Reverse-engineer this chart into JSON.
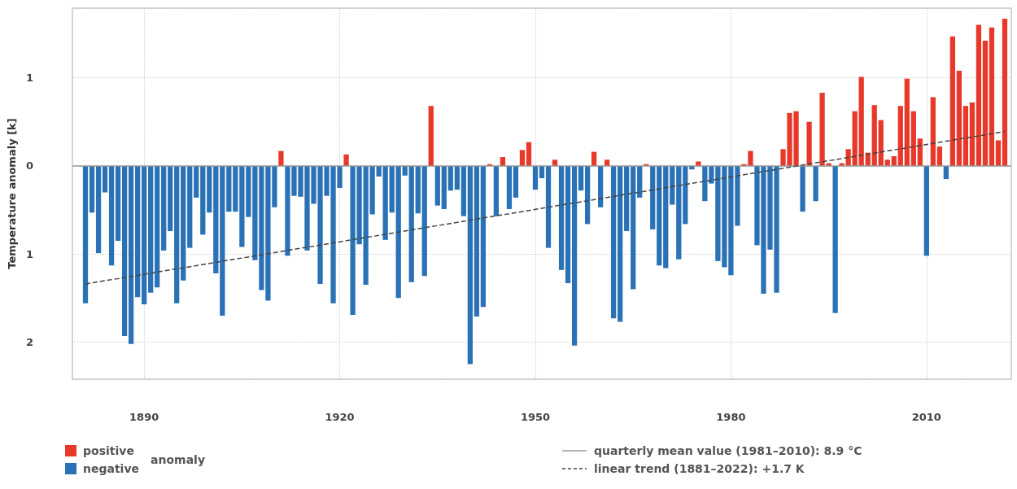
{
  "chart_data": {
    "type": "bar",
    "ylabel": "Temperature anomaly [k]",
    "legend_title": "anomaly",
    "x": [
      1881,
      1882,
      1883,
      1884,
      1885,
      1886,
      1887,
      1888,
      1889,
      1890,
      1891,
      1892,
      1893,
      1894,
      1895,
      1896,
      1897,
      1898,
      1899,
      1900,
      1901,
      1902,
      1903,
      1904,
      1905,
      1906,
      1907,
      1908,
      1909,
      1910,
      1911,
      1912,
      1913,
      1914,
      1915,
      1916,
      1917,
      1918,
      1919,
      1920,
      1921,
      1922,
      1923,
      1924,
      1925,
      1926,
      1927,
      1928,
      1929,
      1930,
      1931,
      1932,
      1933,
      1934,
      1935,
      1936,
      1937,
      1938,
      1939,
      1940,
      1941,
      1942,
      1943,
      1944,
      1945,
      1946,
      1947,
      1948,
      1949,
      1950,
      1951,
      1952,
      1953,
      1954,
      1955,
      1956,
      1957,
      1958,
      1959,
      1960,
      1961,
      1962,
      1963,
      1964,
      1965,
      1966,
      1967,
      1968,
      1969,
      1970,
      1971,
      1972,
      1973,
      1974,
      1975,
      1976,
      1977,
      1978,
      1979,
      1980,
      1981,
      1982,
      1983,
      1984,
      1985,
      1986,
      1987,
      1988,
      1989,
      1990,
      1991,
      1992,
      1993,
      1994,
      1995,
      1996,
      1997,
      1998,
      1999,
      2000,
      2001,
      2002,
      2003,
      2004,
      2005,
      2006,
      2007,
      2008,
      2009,
      2010,
      2011,
      2012,
      2013,
      2014,
      2015,
      2016,
      2017,
      2018,
      2019,
      2020,
      2021,
      2022
    ],
    "series": [
      {
        "name": "positive",
        "color": "#e8382a",
        "values": [
          null,
          null,
          null,
          null,
          null,
          null,
          null,
          null,
          null,
          null,
          null,
          null,
          null,
          null,
          null,
          null,
          null,
          null,
          null,
          null,
          null,
          null,
          null,
          null,
          null,
          null,
          null,
          null,
          null,
          null,
          0.17,
          null,
          null,
          null,
          null,
          null,
          null,
          null,
          null,
          null,
          0.13,
          null,
          null,
          null,
          null,
          null,
          null,
          null,
          null,
          null,
          null,
          null,
          null,
          0.68,
          null,
          null,
          null,
          null,
          null,
          null,
          null,
          null,
          0.02,
          null,
          0.1,
          null,
          null,
          0.18,
          0.27,
          null,
          null,
          null,
          0.07,
          null,
          null,
          null,
          null,
          null,
          0.16,
          null,
          0.07,
          null,
          null,
          null,
          null,
          null,
          0.02,
          null,
          null,
          null,
          null,
          null,
          null,
          null,
          0.05,
          null,
          null,
          null,
          null,
          null,
          null,
          0.02,
          0.17,
          null,
          null,
          null,
          null,
          0.19,
          0.6,
          0.62,
          null,
          0.5,
          null,
          0.83,
          0.03,
          null,
          0.03,
          0.19,
          0.62,
          1.01,
          0.15,
          0.69,
          0.52,
          0.07,
          0.11,
          0.68,
          0.99,
          0.62,
          0.31,
          null,
          0.78,
          0.22,
          null,
          1.47,
          1.08,
          0.68,
          0.72,
          1.6,
          1.42,
          1.57,
          0.29,
          1.67
        ]
      },
      {
        "name": "negative",
        "color": "#2a72b5",
        "values": [
          -1.56,
          -0.53,
          -0.99,
          -0.3,
          -1.13,
          -0.85,
          -1.93,
          -2.02,
          -1.49,
          -1.57,
          -1.44,
          -1.38,
          -0.96,
          -0.74,
          -1.56,
          -1.3,
          -0.93,
          -0.36,
          -0.78,
          -0.53,
          -1.22,
          -1.7,
          -0.52,
          -0.52,
          -0.92,
          -0.58,
          -1.07,
          -1.41,
          -1.53,
          -0.47,
          null,
          -1.02,
          -0.34,
          -0.35,
          -0.96,
          -0.43,
          -1.34,
          -0.34,
          -1.56,
          -0.25,
          null,
          -1.69,
          -0.89,
          -1.35,
          -0.55,
          -0.12,
          -0.84,
          -0.53,
          -1.5,
          -0.11,
          -1.32,
          -0.54,
          -1.25,
          null,
          -0.45,
          -0.49,
          -0.28,
          -0.27,
          -0.57,
          -2.25,
          -1.71,
          -1.6,
          null,
          -0.57,
          null,
          -0.49,
          -0.36,
          null,
          null,
          -0.27,
          -0.14,
          -0.93,
          null,
          -1.18,
          -1.33,
          -2.04,
          -0.28,
          -0.66,
          null,
          -0.47,
          null,
          -1.73,
          -1.77,
          -0.74,
          -1.4,
          -0.36,
          null,
          -0.72,
          -1.13,
          -1.16,
          -0.44,
          -1.06,
          -0.66,
          -0.04,
          null,
          -0.4,
          -0.2,
          -1.08,
          -1.15,
          -1.24,
          -0.68,
          null,
          null,
          -0.9,
          -1.45,
          -0.95,
          -1.44,
          null,
          null,
          null,
          -0.52,
          null,
          -0.4,
          null,
          null,
          -1.67,
          null,
          null,
          null,
          null,
          null,
          null,
          null,
          null,
          null,
          null,
          null,
          null,
          null,
          -1.02,
          null,
          null,
          -0.15,
          null,
          null,
          null,
          null,
          null,
          null,
          null,
          null,
          null
        ]
      },
      {
        "type": "line",
        "name": "linear trend (1881–2022): +1.7 K",
        "color": "#444444",
        "line_style": "dashed",
        "x": [
          1881,
          2022
        ],
        "values": [
          -1.34,
          0.39
        ]
      }
    ],
    "ref_lines": [
      {
        "axis": "y",
        "value": 0,
        "color": "#999999"
      }
    ],
    "annotations": [
      "quarterly mean value (1981–2010): 8.9 °C"
    ],
    "xlim": [
      1879,
      2023
    ],
    "xticks": [
      1890,
      1920,
      1950,
      1980,
      2010
    ],
    "ylim": [
      -2.42,
      1.79
    ],
    "yticks": [
      1,
      0,
      {
        "value": -1,
        "label": "1"
      },
      {
        "value": -2,
        "label": "2"
      }
    ],
    "grid": true,
    "legend": "bottom"
  }
}
